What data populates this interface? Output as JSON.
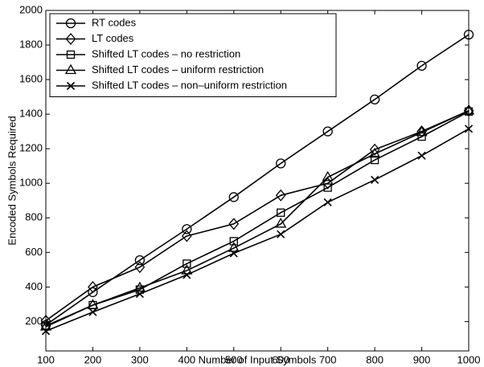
{
  "chart_data": {
    "type": "line",
    "x_label": "Number of Input Symbols",
    "y_label": "Encoded Symbols Required",
    "x": [
      100,
      200,
      300,
      400,
      500,
      600,
      700,
      800,
      900,
      1000
    ],
    "xlim": [
      100,
      1000
    ],
    "xticks": [
      100,
      200,
      300,
      400,
      500,
      600,
      700,
      800,
      900,
      1000
    ],
    "ylim": [
      30,
      2000
    ],
    "yticks": [
      200,
      400,
      600,
      800,
      1000,
      1200,
      1400,
      1600,
      1800,
      2000
    ],
    "grid": false,
    "legend_position": "upper-left",
    "series": [
      {
        "name": "RT codes",
        "color": "#000000",
        "marker": "circle",
        "values": [
          180,
          370,
          555,
          735,
          920,
          1115,
          1300,
          1485,
          1680,
          1860
        ]
      },
      {
        "name": "LT codes",
        "color": "#000000",
        "marker": "diamond",
        "values": [
          205,
          400,
          515,
          695,
          765,
          930,
          1000,
          1195,
          1300,
          1420
        ]
      },
      {
        "name": "Shifted LT codes – no restriction",
        "color": "#000000",
        "marker": "square",
        "values": [
          175,
          295,
          385,
          535,
          665,
          830,
          975,
          1135,
          1270,
          1415
        ]
      },
      {
        "name": "Shifted LT codes – uniform restriction",
        "color": "#000000",
        "marker": "triangle",
        "values": [
          170,
          295,
          395,
          495,
          625,
          765,
          1035,
          1170,
          1295,
          1420
        ]
      },
      {
        "name": "Shifted LT codes – non–uniform restriction",
        "color": "#000000",
        "marker": "x",
        "values": [
          145,
          255,
          360,
          470,
          595,
          705,
          890,
          1020,
          1160,
          1315
        ]
      }
    ]
  }
}
